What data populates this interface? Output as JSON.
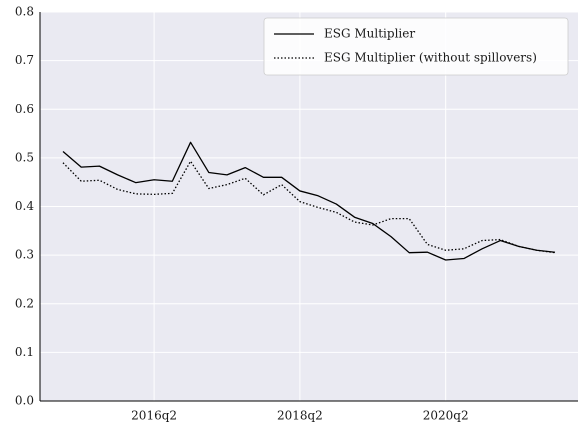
{
  "chart_data": {
    "type": "line",
    "categories": [
      null,
      null,
      null,
      null,
      null,
      "2016q2",
      null,
      null,
      null,
      null,
      null,
      null,
      null,
      "2018q2",
      null,
      null,
      null,
      null,
      null,
      null,
      null,
      "2020q2",
      null,
      null,
      null,
      null,
      null,
      null
    ],
    "series": [
      {
        "name": "ESG Multiplier",
        "color": "#000000",
        "linestyle": "solid",
        "values": [
          0.513,
          0.481,
          0.483,
          0.465,
          0.449,
          0.455,
          0.452,
          0.532,
          0.47,
          0.465,
          0.48,
          0.46,
          0.46,
          0.432,
          0.422,
          0.405,
          0.378,
          0.365,
          0.338,
          0.305,
          0.306,
          0.29,
          0.293,
          0.313,
          0.33,
          0.318,
          0.31,
          0.306
        ]
      },
      {
        "name": "ESG Multiplier (without spillovers)",
        "color": "#000000",
        "linestyle": "dotted",
        "values": [
          0.49,
          0.452,
          0.454,
          0.435,
          0.426,
          0.425,
          0.427,
          0.493,
          0.437,
          0.445,
          0.458,
          0.424,
          0.445,
          0.41,
          0.398,
          0.388,
          0.368,
          0.362,
          0.375,
          0.375,
          0.322,
          0.31,
          0.313,
          0.33,
          0.332,
          0.318,
          0.31,
          0.305
        ]
      }
    ],
    "ylim": [
      0,
      0.8
    ],
    "yticks": [
      {
        "value": 0,
        "label": "0.0"
      },
      0.1,
      0.2,
      0.3,
      0.4,
      0.5,
      0.6,
      0.7,
      0.8
    ],
    "grid": true,
    "legend": "upper right"
  }
}
